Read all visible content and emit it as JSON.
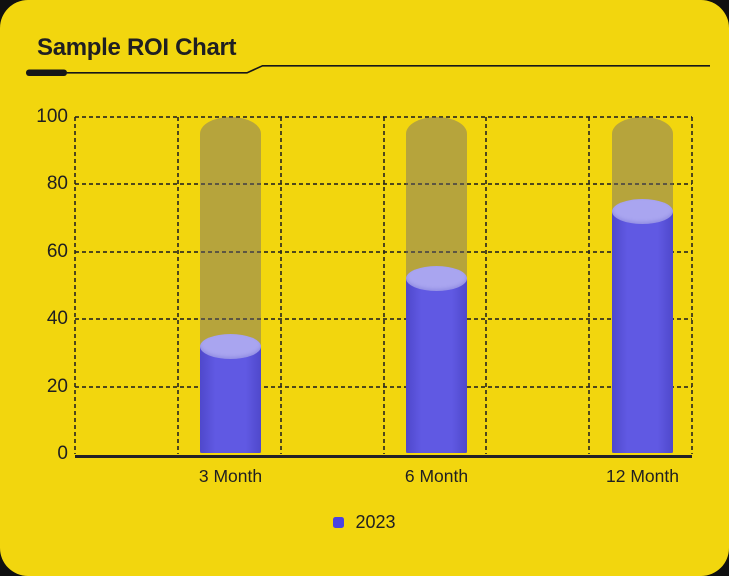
{
  "header": {
    "title": "Sample ROI Chart"
  },
  "chart_data": {
    "type": "bar",
    "variant": "3d-cylinder-columns",
    "title": "Sample ROI Chart",
    "categories": [
      "3 Month",
      "6 Month",
      "12 Month"
    ],
    "series": [
      {
        "name": "2023",
        "values": [
          32,
          52,
          72
        ]
      }
    ],
    "background_track_value": 100,
    "ylim": [
      0,
      100
    ],
    "yticks": [
      0,
      20,
      40,
      60,
      80,
      100
    ],
    "grid": "dashed horizontal and vertical gridlines",
    "legend_position": "bottom-center"
  },
  "legend": {
    "items": [
      {
        "label": "2023",
        "color": "#4a43e1"
      }
    ]
  },
  "colors": {
    "page_background": "#101010",
    "card_background": "#f2d60e",
    "text": "#1f1f22",
    "title_underline": "#161618",
    "grid_line": "rgba(38,36,30,0.8)",
    "axis_line": "#222126",
    "bar_body": "#6059e3",
    "bar_body_edge": "#4f48cb",
    "bar_top_ellipse": "#a9a5f0",
    "background_track": "rgba(108,105,118,0.45)",
    "legend_swatch": "#4a43e1"
  }
}
